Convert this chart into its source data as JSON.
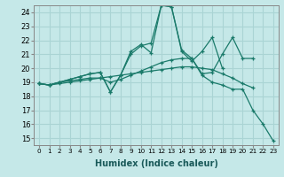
{
  "xlabel": "Humidex (Indice chaleur)",
  "background_color": "#c5e8e8",
  "grid_color": "#aad4d4",
  "line_color": "#1a7a6a",
  "xlim": [
    -0.5,
    23.5
  ],
  "ylim": [
    14.5,
    24.5
  ],
  "xticks": [
    0,
    1,
    2,
    3,
    4,
    5,
    6,
    7,
    8,
    9,
    10,
    11,
    12,
    13,
    14,
    15,
    16,
    17,
    18,
    19,
    20,
    21,
    22,
    23
  ],
  "yticks": [
    15,
    16,
    17,
    18,
    19,
    20,
    21,
    22,
    23,
    24
  ],
  "series": [
    [
      18.9,
      18.8,
      19.0,
      19.2,
      19.4,
      19.6,
      19.7,
      18.3,
      19.5,
      21.2,
      21.7,
      21.1,
      24.5,
      24.4,
      21.2,
      20.5,
      21.2,
      22.2,
      20.0,
      null,
      null,
      null,
      null,
      null
    ],
    [
      18.9,
      18.8,
      19.0,
      19.2,
      19.4,
      19.6,
      19.7,
      18.3,
      19.5,
      21.0,
      21.6,
      21.8,
      24.5,
      24.4,
      21.3,
      20.7,
      19.6,
      19.7,
      21.0,
      22.2,
      20.7,
      20.7,
      null,
      null
    ],
    [
      18.9,
      18.8,
      18.9,
      19.0,
      19.1,
      19.2,
      19.3,
      19.4,
      19.5,
      19.6,
      19.7,
      19.8,
      19.9,
      20.0,
      20.1,
      20.1,
      20.0,
      19.9,
      19.6,
      19.3,
      18.9,
      18.6,
      null,
      null
    ],
    [
      18.9,
      18.8,
      19.0,
      19.1,
      19.2,
      19.3,
      19.3,
      19.0,
      19.2,
      19.5,
      19.8,
      20.1,
      20.4,
      20.6,
      20.7,
      20.7,
      19.5,
      19.0,
      18.8,
      18.5,
      18.5,
      17.0,
      16.0,
      14.8
    ]
  ]
}
